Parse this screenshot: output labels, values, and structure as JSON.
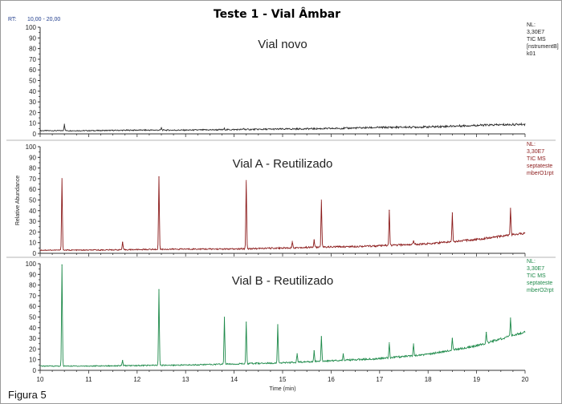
{
  "figure_title": "Teste 1 - Vial Âmbar",
  "figure_label": "Figura 5",
  "rt_label": "RT:",
  "rt_range": "10,00 - 20,00",
  "colors": {
    "black": "#2b2b2b",
    "red": "#8b1a1a",
    "green": "#1e8a4a",
    "axis": "#333333"
  },
  "chart_data": [
    {
      "type": "line",
      "title": "Vial novo",
      "color": "#2b2b2b",
      "nl": [
        "NL:",
        "3,30E7",
        "TIC MS",
        "[nstrumentB]",
        "k01"
      ],
      "xlim": [
        10,
        20
      ],
      "ylim": [
        0,
        100
      ],
      "yticks": [
        "0",
        "10",
        "20",
        "30",
        "40",
        "50",
        "60",
        "70",
        "80",
        "90",
        "100"
      ],
      "baseline": [
        [
          10,
          3
        ],
        [
          11,
          3
        ],
        [
          12,
          3.5
        ],
        [
          13,
          3.5
        ],
        [
          14,
          4
        ],
        [
          15,
          4.5
        ],
        [
          16,
          5
        ],
        [
          17,
          6
        ],
        [
          18,
          6.5
        ],
        [
          19,
          8
        ],
        [
          20,
          9
        ]
      ],
      "peaks": [
        [
          10.5,
          6
        ],
        [
          12.5,
          2
        ],
        [
          13.8,
          1
        ],
        [
          14.2,
          1
        ]
      ]
    },
    {
      "type": "line",
      "title": "Vial A - Reutilizado",
      "color": "#8b1a1a",
      "nl": [
        "NL:",
        "3,30E7",
        "TIC MS",
        "septateste",
        "mberO1rpt"
      ],
      "xlim": [
        10,
        20
      ],
      "ylim": [
        0,
        100
      ],
      "yticks": [
        "0",
        "10",
        "20",
        "30",
        "40",
        "50",
        "60",
        "70",
        "80",
        "90",
        "100"
      ],
      "baseline": [
        [
          10,
          3
        ],
        [
          11,
          3
        ],
        [
          12,
          3.5
        ],
        [
          13,
          4
        ],
        [
          14,
          4
        ],
        [
          15,
          5
        ],
        [
          16,
          6
        ],
        [
          17,
          7
        ],
        [
          18,
          9
        ],
        [
          19,
          13
        ],
        [
          20,
          19
        ]
      ],
      "peaks": [
        [
          10.45,
          67
        ],
        [
          11.7,
          7
        ],
        [
          12.45,
          68
        ],
        [
          14.25,
          64
        ],
        [
          15.2,
          6
        ],
        [
          15.65,
          7
        ],
        [
          15.8,
          44
        ],
        [
          17.2,
          33
        ],
        [
          17.7,
          3
        ],
        [
          18.5,
          27
        ],
        [
          19.7,
          25
        ]
      ]
    },
    {
      "type": "line",
      "title": "Vial B - Reutilizado",
      "color": "#1e8a4a",
      "nl": [
        "NL:",
        "3,30E7",
        "TIC MS",
        "septateste",
        "mberO2rpt"
      ],
      "xlim": [
        10,
        20
      ],
      "ylim": [
        0,
        100
      ],
      "yticks": [
        "0",
        "10",
        "20",
        "30",
        "40",
        "50",
        "60",
        "70",
        "80",
        "90",
        "100"
      ],
      "xticks": [
        "10",
        "11",
        "12",
        "13",
        "14",
        "15",
        "16",
        "17",
        "18",
        "19",
        "20"
      ],
      "xlabel": "Time (min)",
      "baseline": [
        [
          10,
          4
        ],
        [
          11,
          4
        ],
        [
          12,
          4.5
        ],
        [
          13,
          5
        ],
        [
          14,
          6
        ],
        [
          15,
          7
        ],
        [
          16,
          9
        ],
        [
          17,
          11
        ],
        [
          18,
          15
        ],
        [
          19,
          23
        ],
        [
          20,
          36
        ]
      ],
      "peaks": [
        [
          10.45,
          95
        ],
        [
          11.7,
          5
        ],
        [
          12.45,
          71
        ],
        [
          13.8,
          44
        ],
        [
          14.25,
          39
        ],
        [
          14.9,
          36
        ],
        [
          15.3,
          8
        ],
        [
          15.65,
          10
        ],
        [
          15.8,
          23
        ],
        [
          16.25,
          6
        ],
        [
          17.2,
          14
        ],
        [
          17.7,
          11
        ],
        [
          18.5,
          11
        ],
        [
          19.2,
          10
        ],
        [
          19.7,
          17
        ]
      ]
    }
  ],
  "ylabel": "Relative Abundance"
}
